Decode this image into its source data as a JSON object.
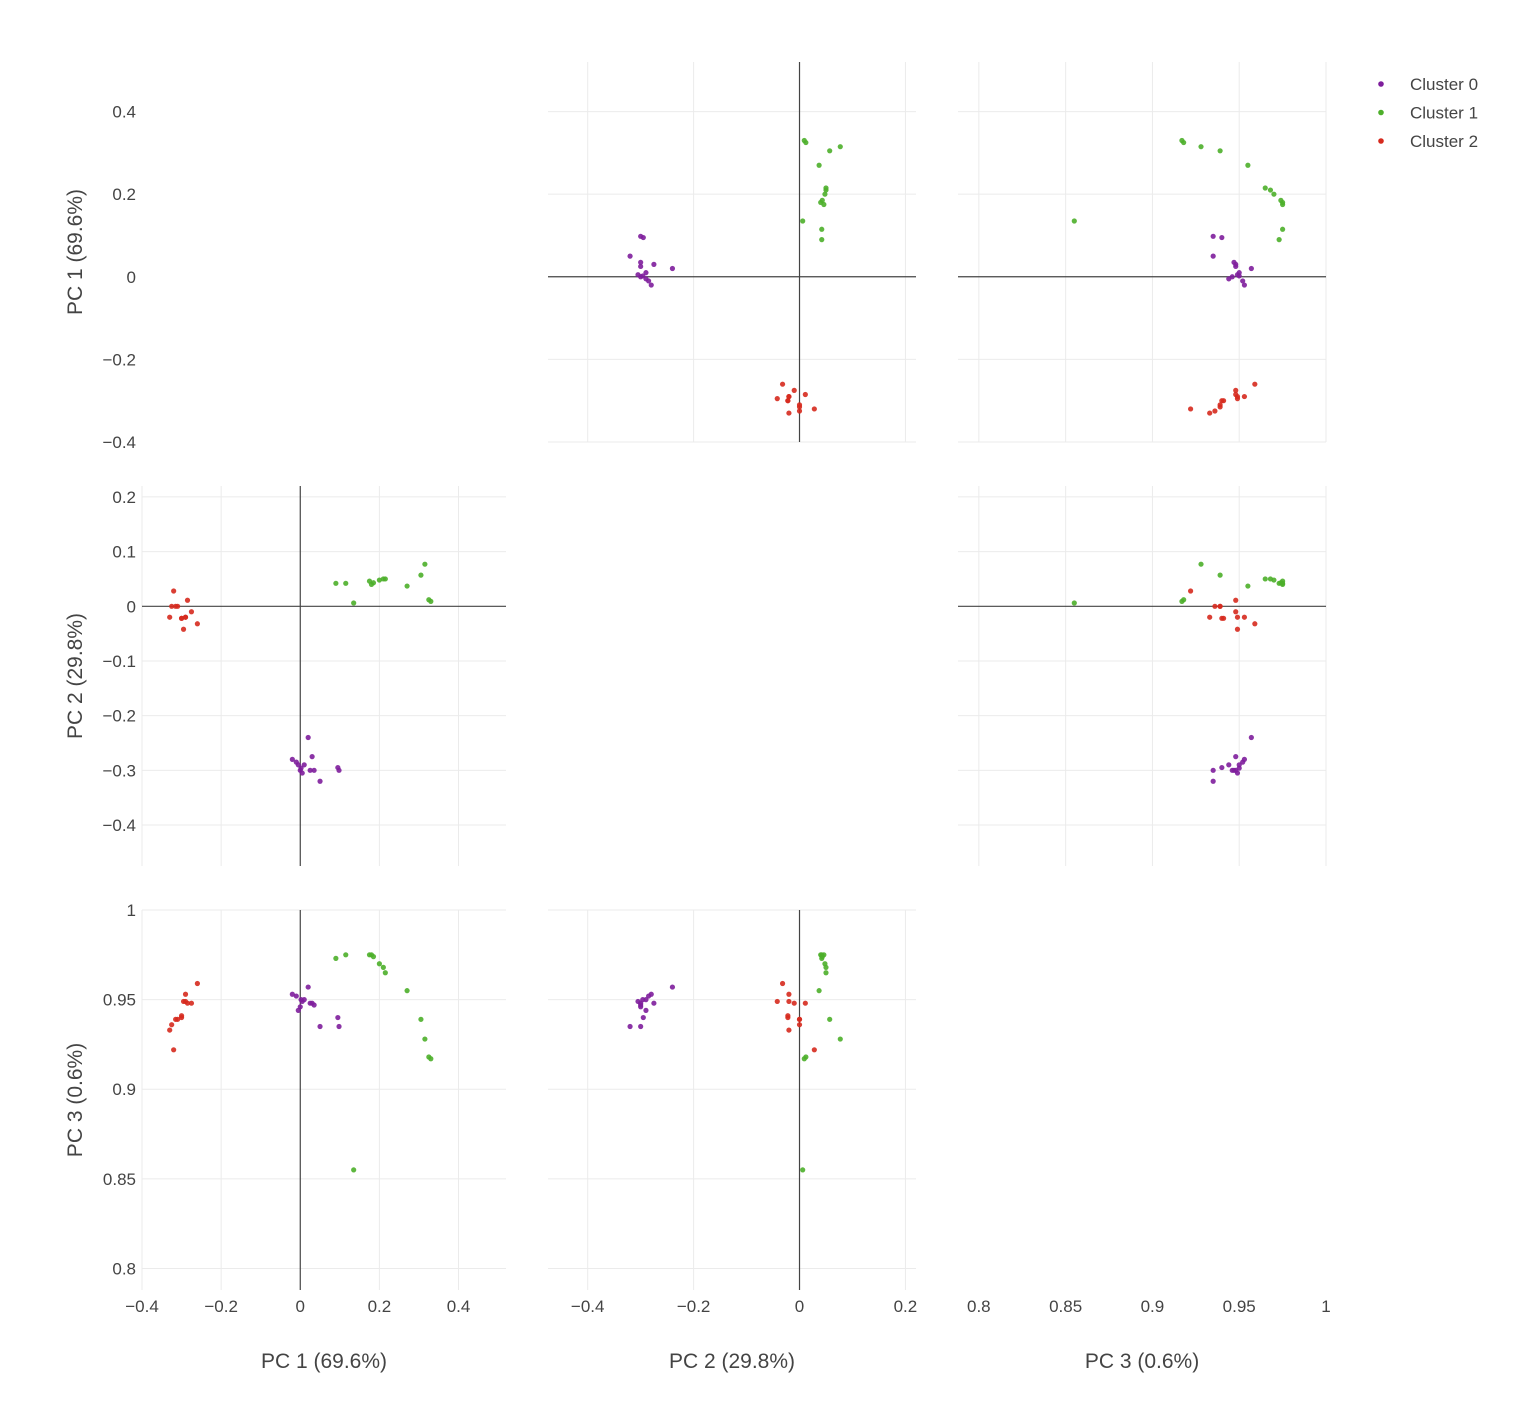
{
  "chart_data": {
    "type": "scatter",
    "layout": "scatter-matrix",
    "dimensions": [
      {
        "id": "pc1",
        "label": "PC 1 (69.6%)",
        "range": [
          -0.4,
          0.52
        ],
        "ticks": [
          -0.4,
          -0.2,
          0,
          0.2,
          0.4
        ],
        "tick_labels": [
          "−0.4",
          "−0.2",
          "0",
          "0.2",
          "0.4"
        ]
      },
      {
        "id": "pc2",
        "label": "PC 2 (29.8%)",
        "range": [
          -0.475,
          0.22
        ],
        "ticks": [
          -0.4,
          -0.3,
          -0.2,
          -0.1,
          0,
          0.1,
          0.2
        ],
        "tick_labels": [
          "−0.4",
          "−0.3",
          "−0.2",
          "−0.1",
          "0",
          "0.1",
          "0.2"
        ],
        "x_ticks": [
          -0.4,
          -0.2,
          0,
          0.2
        ],
        "x_tick_labels": [
          "−0.4",
          "−0.2",
          "0",
          "0.2"
        ]
      },
      {
        "id": "pc3",
        "label": "PC 3 (0.6%)",
        "range": [
          0.788,
          1.0
        ],
        "ticks": [
          0.8,
          0.85,
          0.9,
          0.95,
          1
        ],
        "tick_labels": [
          "0.8",
          "0.85",
          "0.9",
          "0.95",
          "1"
        ]
      }
    ],
    "grid": true,
    "zero_lines": true,
    "legend_position": "top-right",
    "series": [
      {
        "name": "Cluster 0",
        "color": "#7e1e9c",
        "points": [
          [
            0.0,
            -0.3,
            0.946
          ],
          [
            0.005,
            -0.305,
            0.949
          ],
          [
            -0.02,
            -0.28,
            0.953
          ],
          [
            -0.01,
            -0.285,
            0.952
          ],
          [
            0.02,
            -0.24,
            0.957
          ],
          [
            0.03,
            -0.275,
            0.948
          ],
          [
            0.035,
            -0.3,
            0.947
          ],
          [
            0.05,
            -0.32,
            0.935
          ],
          [
            0.095,
            -0.295,
            0.94
          ],
          [
            0.098,
            -0.3,
            0.935
          ],
          [
            0.01,
            -0.29,
            0.95
          ],
          [
            -0.005,
            -0.29,
            0.944
          ],
          [
            0.002,
            -0.296,
            0.95
          ],
          [
            0.025,
            -0.3,
            0.948
          ]
        ]
      },
      {
        "name": "Cluster 1",
        "color": "#4daf2a",
        "points": [
          [
            0.09,
            0.042,
            0.973
          ],
          [
            0.115,
            0.042,
            0.975
          ],
          [
            0.135,
            0.006,
            0.855
          ],
          [
            0.175,
            0.046,
            0.975
          ],
          [
            0.18,
            0.04,
            0.975
          ],
          [
            0.2,
            0.048,
            0.97
          ],
          [
            0.215,
            0.05,
            0.965
          ],
          [
            0.27,
            0.037,
            0.955
          ],
          [
            0.305,
            0.057,
            0.939
          ],
          [
            0.315,
            0.077,
            0.928
          ],
          [
            0.325,
            0.012,
            0.918
          ],
          [
            0.33,
            0.009,
            0.917
          ],
          [
            0.185,
            0.043,
            0.974
          ],
          [
            0.21,
            0.05,
            0.968
          ]
        ]
      },
      {
        "name": "Cluster 2",
        "color": "#d62a1e",
        "points": [
          [
            -0.33,
            -0.02,
            0.933
          ],
          [
            -0.325,
            0.0,
            0.936
          ],
          [
            -0.32,
            0.028,
            0.922
          ],
          [
            -0.315,
            0.0,
            0.939
          ],
          [
            -0.31,
            0.0,
            0.939
          ],
          [
            -0.3,
            -0.022,
            0.941
          ],
          [
            -0.295,
            -0.042,
            0.949
          ],
          [
            -0.29,
            -0.02,
            0.953
          ],
          [
            -0.285,
            0.011,
            0.948
          ],
          [
            -0.275,
            -0.01,
            0.948
          ],
          [
            -0.26,
            -0.032,
            0.959
          ],
          [
            -0.29,
            -0.02,
            0.949
          ],
          [
            -0.3,
            -0.022,
            0.94
          ]
        ]
      }
    ]
  }
}
